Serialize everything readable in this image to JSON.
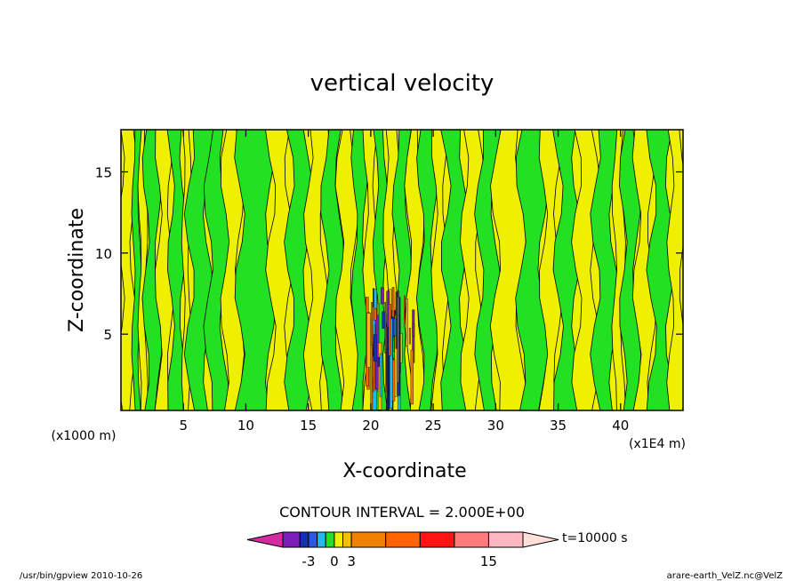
{
  "chart_data": {
    "type": "heatmap",
    "title": "vertical velocity",
    "xlabel": "X-coordinate",
    "ylabel": "Z-coordinate",
    "x_unit_note": "(x1E4 m)",
    "y_unit_note": "(x1000 m)",
    "xlim": [
      0,
      45
    ],
    "ylim": [
      0.3,
      17.6
    ],
    "x_ticks": [
      5,
      10,
      15,
      20,
      25,
      30,
      35,
      40
    ],
    "y_ticks": [
      5,
      10,
      15
    ],
    "contour_interval_text": "CONTOUR INTERVAL = 2.000E+00",
    "time_label": "t=10000 s",
    "colorbar": {
      "colors": [
        "#d32ba2",
        "#7a1fb8",
        "#1530b3",
        "#2a59e0",
        "#22b8e8",
        "#22e022",
        "#eef000",
        "#f6c000",
        "#f08000",
        "#ff6400",
        "#ff1414",
        "#ff7a7a",
        "#ffb8c0",
        "#ffdfd8"
      ],
      "tick_labels": [
        "-3",
        "0",
        "3",
        "15"
      ],
      "segment_widths": [
        1,
        1,
        0.5,
        0.5,
        0.5,
        0.5,
        0.5,
        0.5,
        2,
        2,
        2,
        2,
        2,
        2
      ]
    },
    "bands": {
      "x_boundaries": [
        0,
        1,
        1.5,
        2,
        3,
        4,
        5,
        5.5,
        7,
        8.3,
        9.5,
        12,
        13.5,
        15,
        16.3,
        17.5,
        18.7,
        19.6,
        20.4,
        21.2,
        22,
        23,
        24,
        25.1,
        26,
        27.5,
        28.7,
        30,
        32,
        33.8,
        35,
        36.5,
        38,
        39.5,
        40.2,
        41.3,
        42.5,
        44,
        45
      ],
      "colors": [
        "#eef000",
        "#22e022",
        "#eef000",
        "#22e022",
        "#eef000",
        "#22e022",
        "#eef000",
        "#22e022",
        "#22e022",
        "#eef000",
        "#22e022",
        "#eef000",
        "#22e022",
        "#eef000",
        "#22e022",
        "#eef000",
        "#22e022",
        "#eef000",
        "#22e022",
        "#eef000",
        "#22e022",
        "#eef000",
        "#22e022",
        "#eef000",
        "#22e022",
        "#eef000",
        "#22e022",
        "#eef000",
        "#22e022",
        "#eef000",
        "#22e022",
        "#eef000",
        "#22e022",
        "#eef000",
        "#22e022",
        "#eef000",
        "#22e022",
        "#eef000"
      ]
    },
    "storm_core": {
      "x_range": [
        19.5,
        23.5
      ],
      "z_range": [
        0.3,
        8
      ],
      "colors": [
        "#f6c000",
        "#f08000",
        "#ff6400",
        "#7a1fb8",
        "#1530b3",
        "#22b8e8"
      ]
    }
  },
  "footer": {
    "left": "/usr/bin/gpview  2010-10-26",
    "right": "arare-earth_VelZ.nc@VelZ"
  }
}
